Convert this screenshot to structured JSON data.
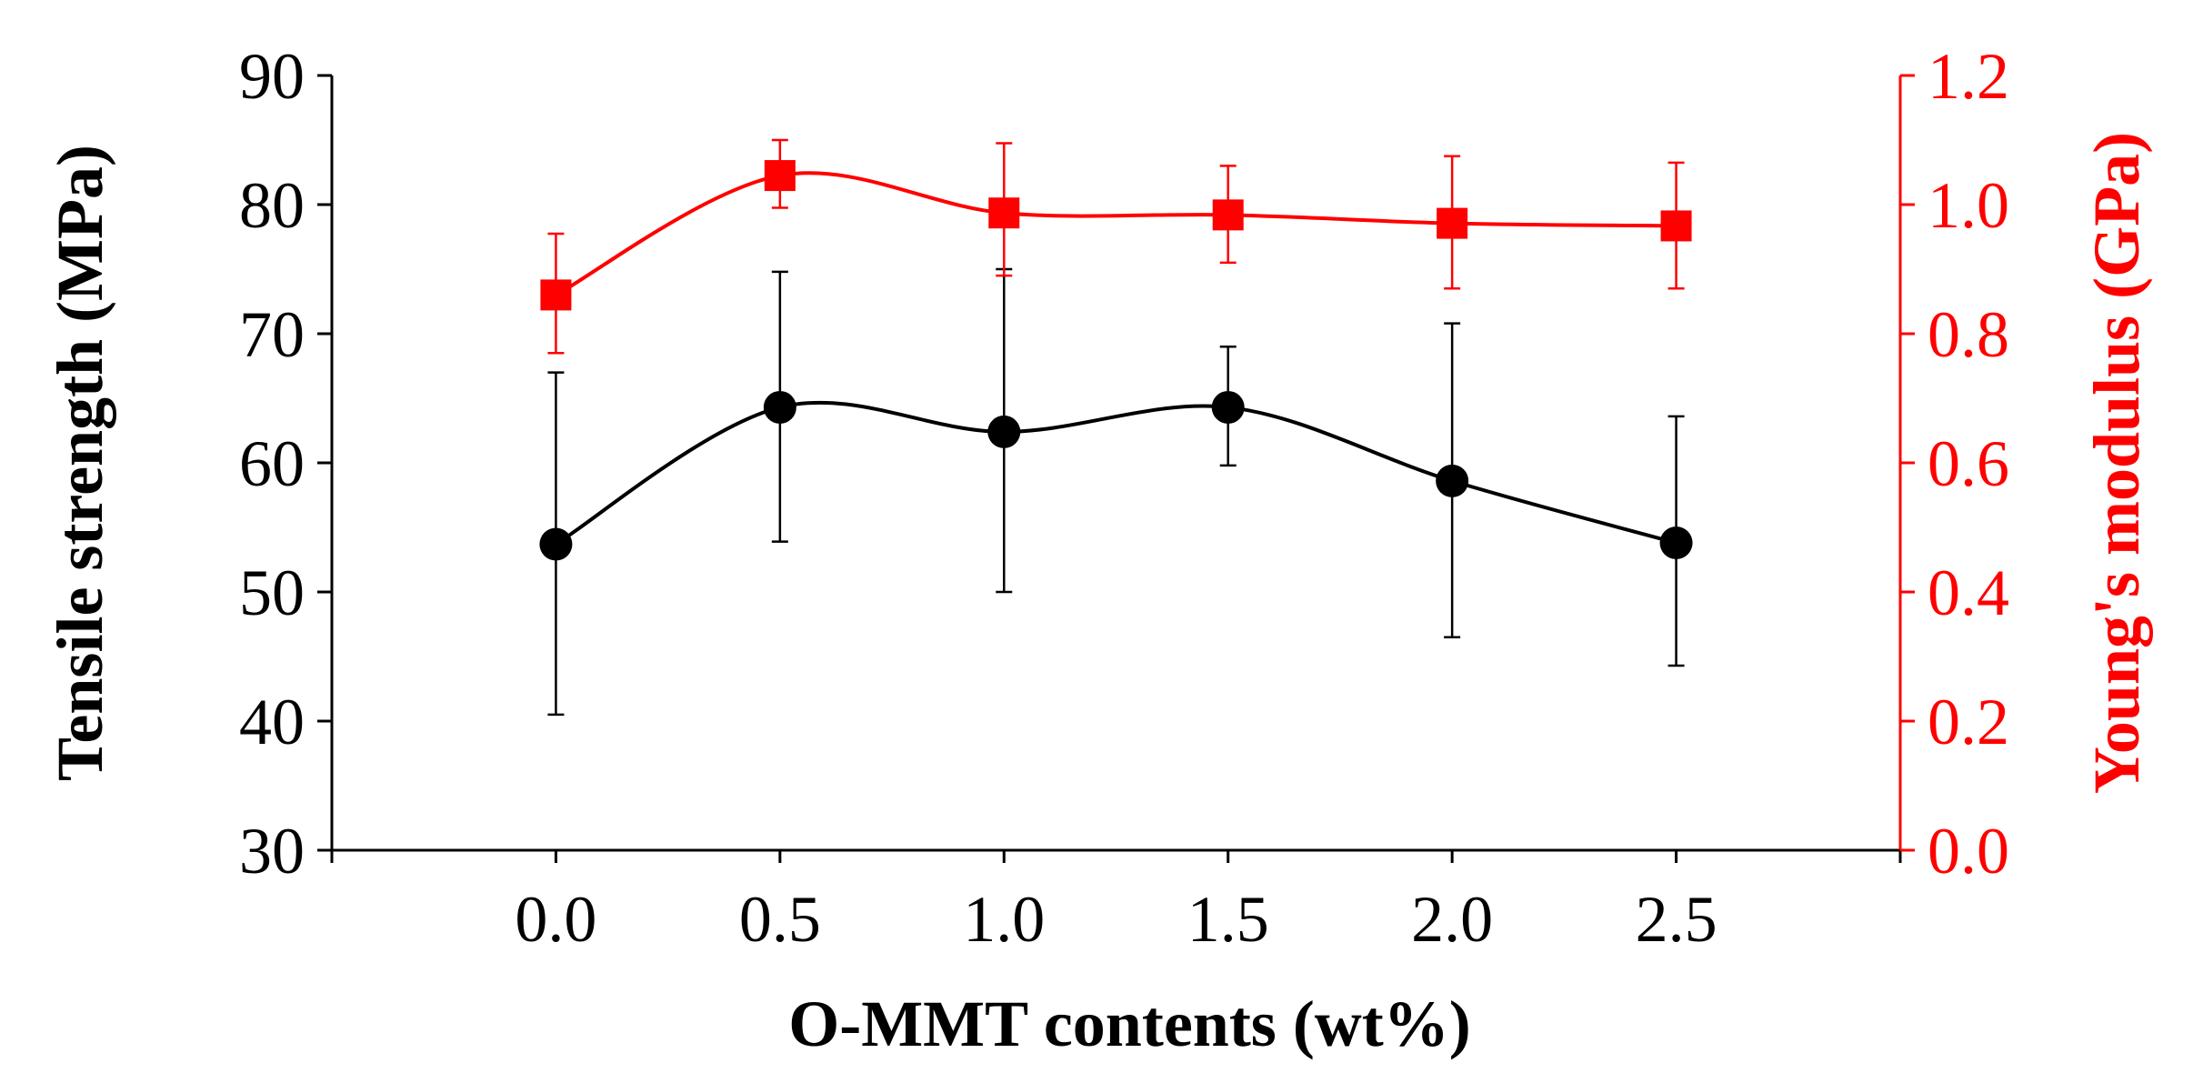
{
  "chart_data": {
    "type": "line",
    "xlabel": "O-MMT contents (wt%)",
    "ylabel": "Tensile strength (MPa)",
    "y2label": "Young's modulus (GPa)",
    "x": [
      0.0,
      0.5,
      1.0,
      1.5,
      2.0,
      2.5
    ],
    "x_tick_labels": [
      "0.0",
      "0.5",
      "1.0",
      "1.5",
      "2.0",
      "2.5"
    ],
    "xlim": [
      -0.5,
      3.0
    ],
    "ylim": [
      30,
      90
    ],
    "y_ticks": [
      30,
      40,
      50,
      60,
      70,
      80,
      90
    ],
    "y_tick_labels": [
      "30",
      "40",
      "50",
      "60",
      "70",
      "80",
      "90"
    ],
    "y2lim": [
      0.0,
      1.2
    ],
    "y2_ticks": [
      0.0,
      0.2,
      0.4,
      0.6,
      0.8,
      1.0,
      1.2
    ],
    "y2_tick_labels": [
      "0.0",
      "0.2",
      "0.4",
      "0.6",
      "0.8",
      "1.0",
      "1.2"
    ],
    "legend": "none",
    "grid": false,
    "series": [
      {
        "name": "Tensile strength",
        "axis": "left",
        "marker": "circle",
        "color": "#000000",
        "values": [
          53.7,
          64.3,
          62.4,
          64.3,
          58.6,
          53.8
        ],
        "error_low": [
          40.5,
          53.9,
          50.0,
          59.8,
          46.5,
          44.3
        ],
        "error_high": [
          67.0,
          74.8,
          75.0,
          69.0,
          70.8,
          63.6
        ]
      },
      {
        "name": "Young's modulus",
        "axis": "right",
        "marker": "square",
        "color": "#ff0000",
        "values": [
          0.86,
          1.045,
          0.987,
          0.984,
          0.971,
          0.967
        ],
        "error_low": [
          0.77,
          0.995,
          0.89,
          0.91,
          0.87,
          0.87
        ],
        "error_high": [
          0.955,
          1.1,
          1.095,
          1.06,
          1.075,
          1.065
        ]
      }
    ]
  }
}
